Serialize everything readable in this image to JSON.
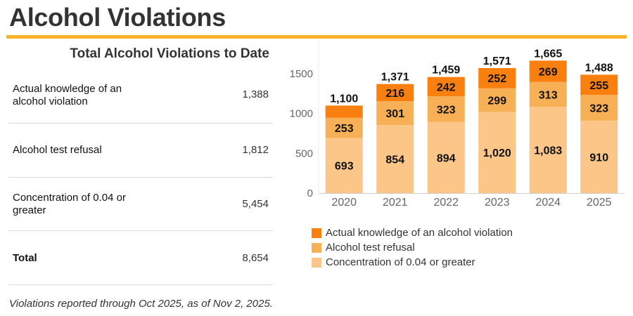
{
  "header": {
    "title": "Alcohol Violations"
  },
  "summary": {
    "title": "Total Alcohol Violations to Date",
    "rows": [
      {
        "label": "Actual knowledge of an alcohol violation",
        "value": "1,388"
      },
      {
        "label": "Alcohol test refusal",
        "value": "1,812"
      },
      {
        "label": "Concentration of 0.04 or greater",
        "value": "5,454"
      },
      {
        "label": "Total",
        "value": "8,654"
      }
    ]
  },
  "footnote": "Violations reported through Oct 2025, as of Nov 2, 2025.",
  "chart_data": {
    "type": "bar",
    "stacked": true,
    "title": "",
    "xlabel": "",
    "ylabel": "",
    "categories": [
      "2020",
      "2021",
      "2022",
      "2023",
      "2024",
      "2025"
    ],
    "series": [
      {
        "name": "Concentration of 0.04 or greater",
        "color": "#FDC689",
        "values": [
          693,
          854,
          894,
          1020,
          1083,
          910
        ]
      },
      {
        "name": "Alcohol test refusal",
        "color": "#F7B055",
        "values": [
          253,
          301,
          323,
          299,
          313,
          323
        ]
      },
      {
        "name": "Actual knowledge of an alcohol violation",
        "color": "#F97F0F",
        "values": [
          154,
          216,
          242,
          252,
          269,
          255
        ]
      }
    ],
    "segment_labels_shown": [
      [
        true,
        true,
        true,
        true,
        true,
        true
      ],
      [
        true,
        true,
        true,
        true,
        true,
        true
      ],
      [
        false,
        true,
        true,
        true,
        true,
        true
      ]
    ],
    "totals": [
      "1,100",
      "1,371",
      "1,459",
      "1,571",
      "1,665",
      "1,488"
    ],
    "yticks": [
      0,
      500,
      1000,
      1500
    ],
    "ylim": [
      0,
      1800
    ],
    "grid": false,
    "legend": {
      "position": "bottom",
      "order": [
        "Actual knowledge of an alcohol violation",
        "Alcohol test refusal",
        "Concentration of 0.04 or greater"
      ]
    }
  }
}
